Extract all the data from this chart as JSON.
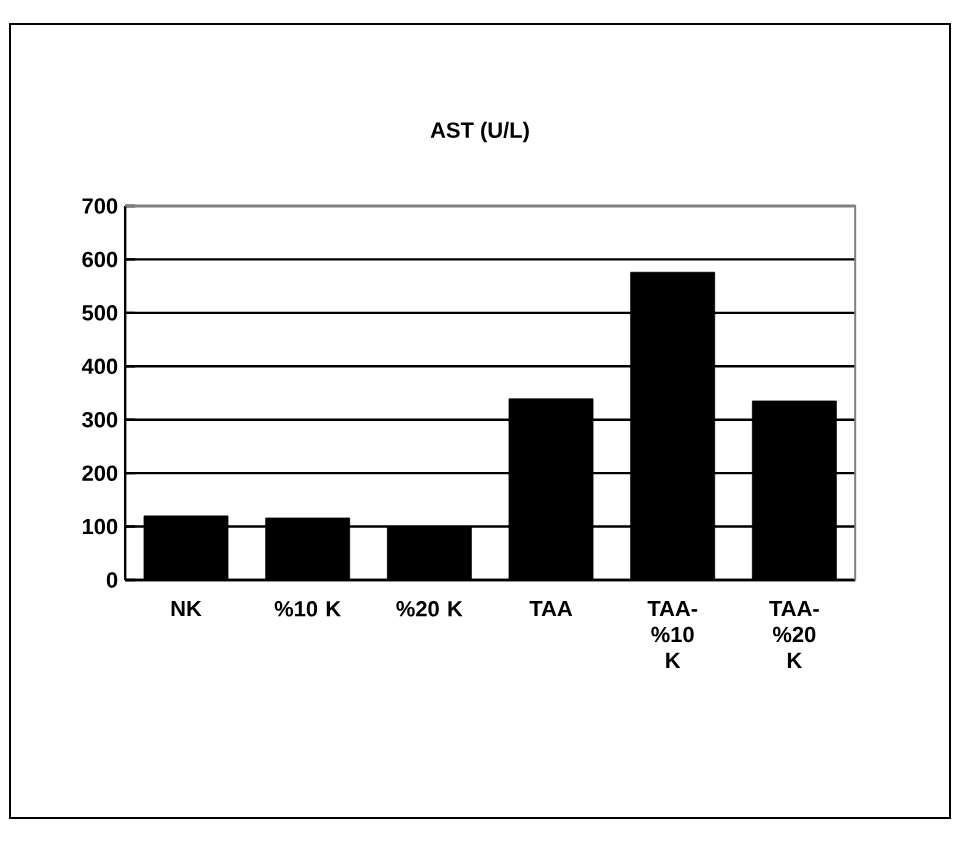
{
  "chart_data": {
    "type": "bar",
    "title": "AST (U/L)",
    "categories": [
      "NK",
      "%10 K",
      "%20 K",
      "TAA",
      "TAA-%10 K",
      "TAA-%20 K"
    ],
    "values": [
      120,
      116,
      100,
      339,
      576,
      335
    ],
    "color": "#000000",
    "ylim": [
      0,
      700
    ],
    "yticks": [
      0,
      100,
      200,
      300,
      400,
      500,
      600,
      700
    ],
    "grid": "y"
  }
}
